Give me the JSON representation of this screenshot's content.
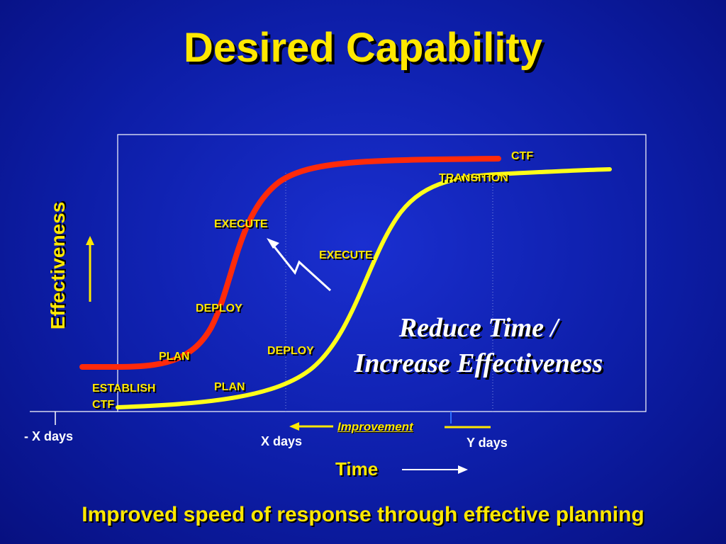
{
  "title": "Desired Capability",
  "y_axis_label": "Effectiveness",
  "x_axis_label": "Time",
  "footer": "Improved speed of response through effective planning",
  "callout": {
    "line1": "Reduce Time /",
    "line2": "Increase Effectiveness"
  },
  "x_markers": {
    "minus_x": "- X days",
    "x": "X days",
    "y": "Y days"
  },
  "improvement_label": "Improvement",
  "stage_labels": {
    "establish": "ESTABLISH",
    "establish_ctf": "CTF",
    "plan_red": "PLAN",
    "deploy_red": "DEPLOY",
    "execute_red": "EXECUTE",
    "ctf_top": "CTF",
    "plan_yellow": "PLAN",
    "deploy_yellow": "DEPLOY",
    "execute_yellow": "EXECUTE",
    "transition": "TRANSITION"
  },
  "colors": {
    "background": "#0d1ea8",
    "title": "#ffe800",
    "red_curve": "#ff2a0a",
    "yellow_curve": "#ffff1a",
    "frame": "#ffffff"
  }
}
